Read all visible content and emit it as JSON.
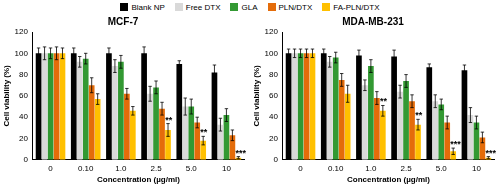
{
  "chart_data": [
    {
      "type": "bar",
      "title": "MCF-7",
      "x_label": "Concentration (µg/ml)",
      "y_label": "Cell viability (%)",
      "categories": [
        "0",
        "0.10",
        "1.0",
        "2.5",
        "5.0",
        "10"
      ],
      "series": [
        {
          "name": "Blank NP",
          "color": "#000000",
          "values": [
            100,
            100,
            100,
            100,
            90,
            82
          ],
          "errors": [
            5,
            5,
            5,
            6,
            3,
            7
          ]
        },
        {
          "name": "Free DTX",
          "color": "#d9d9d9",
          "values": [
            100,
            92,
            88,
            62,
            50,
            33
          ],
          "errors": [
            6,
            5,
            6,
            7,
            8,
            6
          ]
        },
        {
          "name": "GLA",
          "color": "#339933",
          "values": [
            100,
            95,
            92,
            68,
            50,
            42
          ],
          "errors": [
            5,
            5,
            6,
            6,
            7,
            6
          ]
        },
        {
          "name": "PLN/DTX",
          "color": "#e46c0a",
          "values": [
            100,
            70,
            62,
            48,
            35,
            23
          ],
          "errors": [
            6,
            7,
            5,
            6,
            5,
            5
          ]
        },
        {
          "name": "FA-PLN/DTX",
          "color": "#ffc000",
          "values": [
            100,
            57,
            46,
            28,
            18,
            2
          ],
          "errors": [
            5,
            5,
            4,
            6,
            4,
            1
          ]
        }
      ],
      "ylim": [
        0,
        120
      ],
      "yticks": [
        0,
        20,
        40,
        60,
        80,
        100,
        120
      ],
      "grid": false,
      "legend": "top",
      "annotations": [
        {
          "category": "2.5",
          "series": "FA-PLN/DTX",
          "text": "**"
        },
        {
          "category": "5.0",
          "series": "FA-PLN/DTX",
          "text": "**"
        },
        {
          "category": "10",
          "series": "FA-PLN/DTX",
          "text": "***"
        }
      ]
    },
    {
      "type": "bar",
      "title": "MDA-MB-231",
      "x_label": "Concentration (µg/ml)",
      "y_label": "Cell viability (%)",
      "categories": [
        "0",
        "0.10",
        "1.0",
        "2.5",
        "5.0",
        "10"
      ],
      "series": [
        {
          "name": "Blank NP",
          "color": "#000000",
          "values": [
            100,
            100,
            98,
            97,
            87,
            84
          ],
          "errors": [
            4,
            4,
            5,
            6,
            3,
            5
          ]
        },
        {
          "name": "Free DTX",
          "color": "#d9d9d9",
          "values": [
            100,
            92,
            70,
            64,
            55,
            42
          ],
          "errors": [
            4,
            5,
            5,
            6,
            6,
            7
          ]
        },
        {
          "name": "GLA",
          "color": "#339933",
          "values": [
            100,
            96,
            88,
            74,
            52,
            35
          ],
          "errors": [
            4,
            5,
            6,
            6,
            5,
            6
          ]
        },
        {
          "name": "PLN/DTX",
          "color": "#e46c0a",
          "values": [
            100,
            75,
            58,
            55,
            35,
            21
          ],
          "errors": [
            4,
            6,
            6,
            6,
            6,
            5
          ]
        },
        {
          "name": "FA-PLN/DTX",
          "color": "#ffc000",
          "values": [
            100,
            62,
            46,
            33,
            8,
            2
          ],
          "errors": [
            4,
            8,
            5,
            5,
            3,
            1
          ]
        }
      ],
      "ylim": [
        0,
        120
      ],
      "yticks": [
        0,
        20,
        40,
        60,
        80,
        100,
        120
      ],
      "grid": false,
      "legend": false,
      "annotations": [
        {
          "category": "1.0",
          "series": "FA-PLN/DTX",
          "text": "**"
        },
        {
          "category": "2.5",
          "series": "FA-PLN/DTX",
          "text": "**"
        },
        {
          "category": "5.0",
          "series": "FA-PLN/DTX",
          "text": "***"
        },
        {
          "category": "10",
          "series": "FA-PLN/DTX",
          "text": "***"
        }
      ]
    }
  ]
}
